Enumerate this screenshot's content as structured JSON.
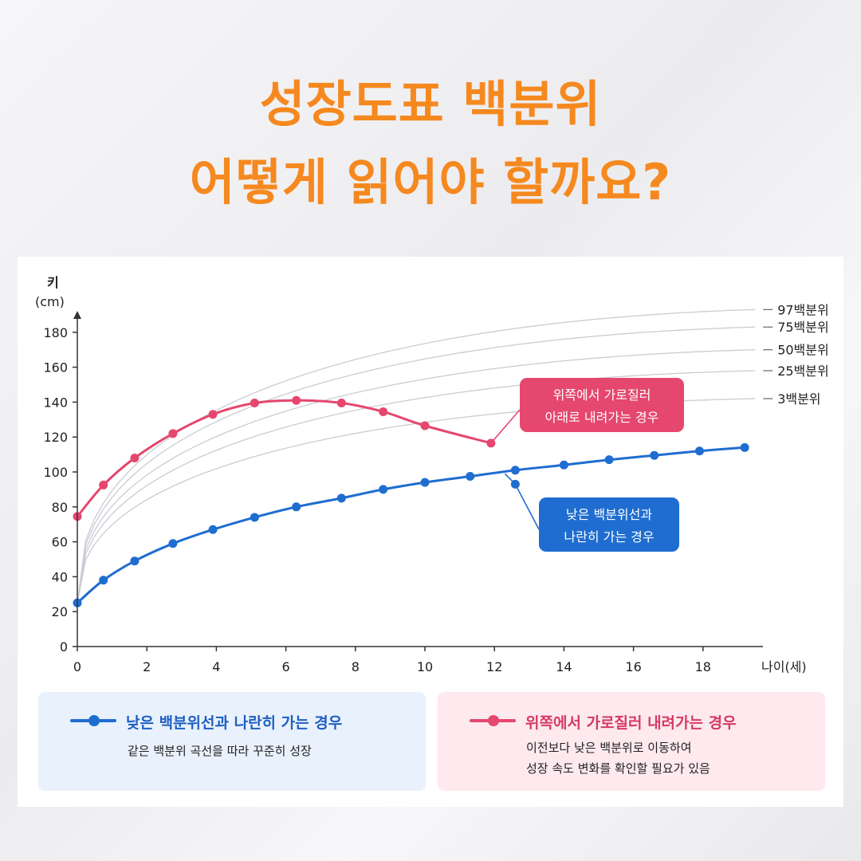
{
  "title": {
    "line1": "성장도표 백분위",
    "line2": "어떻게 읽어야 할까요?"
  },
  "colors": {
    "title": "#f5891f",
    "blue": "#1f6dd0",
    "pink": "#e5476e",
    "percentile_curve": "#c9ccd4"
  },
  "chart_data": {
    "type": "line",
    "ylabel_line1": "키",
    "ylabel_line2": "(cm)",
    "xlabel": "나이(세)",
    "xlim": [
      0,
      20
    ],
    "ylim": [
      0,
      190
    ],
    "xticks": [
      "0",
      "2",
      "4",
      "6",
      "8",
      "10",
      "12",
      "14",
      "16",
      "18"
    ],
    "yticks": [
      "0",
      "20",
      "40",
      "60",
      "80",
      "100",
      "120",
      "140",
      "160",
      "180"
    ],
    "percentile_curves": [
      {
        "name": "97백분위",
        "end_value": 193
      },
      {
        "name": "75백분위",
        "end_value": 183
      },
      {
        "name": "50백분위",
        "end_value": 170
      },
      {
        "name": "25백분위",
        "end_value": 158
      },
      {
        "name": "3백분위",
        "end_value": 142
      }
    ],
    "series": [
      {
        "name": "낮은 백분위선과 나란히 가는 경우",
        "color": "#1f6dd0",
        "x": [
          0,
          0.75,
          1.65,
          2.75,
          3.9,
          5.1,
          6.3,
          7.6,
          8.8,
          10.0,
          11.3,
          12.6,
          14.0,
          15.3,
          16.6,
          17.9,
          19.2
        ],
        "y": [
          25,
          38,
          49,
          59,
          67,
          74,
          80,
          85,
          90,
          94,
          97.5,
          101,
          104,
          107,
          109.5,
          112,
          114
        ]
      },
      {
        "name": "위쪽에서 가로질러 내려가는 경우",
        "color": "#e5476e",
        "x": [
          0,
          0.75,
          1.65,
          2.75,
          3.9,
          5.1,
          6.3,
          7.6,
          8.8,
          10.0,
          11.9
        ],
        "y": [
          74.5,
          92.5,
          108,
          122,
          133,
          139.5,
          141,
          139.5,
          134.5,
          126.5,
          116.5
        ]
      }
    ],
    "extra_point": {
      "x": 12.6,
      "y": 93
    },
    "annotations": [
      {
        "lines": [
          "위쪽에서 가로질러",
          "아래로 내려가는 경우"
        ],
        "color": "#e5476e"
      },
      {
        "lines": [
          "낮은 백분위선과",
          "나란히 가는 경우"
        ],
        "color": "#1f6dd0"
      }
    ]
  },
  "legend": {
    "blue": {
      "label": "낮은 백분위선과 나란히 가는 경우",
      "desc1": "같은 백분위 곡선을 따라 꾸준히 성장"
    },
    "pink": {
      "label": "위쪽에서 가로질러 내려가는 경우",
      "desc1": "이전보다 낮은 백분위로 이동하여",
      "desc2": "성장 속도 변화를 확인할 필요가 있음"
    }
  }
}
